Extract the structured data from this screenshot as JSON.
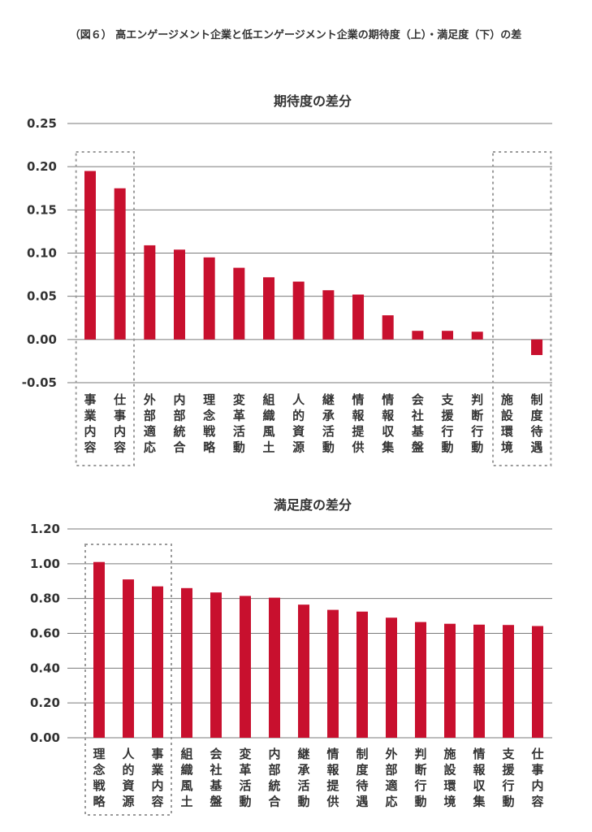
{
  "figure_title": "（図６） 高エンゲージメント企業と低エンゲージメント企業の期待度（上）・満足度（下）の差",
  "colors": {
    "bar": "#c8102e",
    "grid": "#7a7a7a",
    "highlight_border": "#9a9a9a",
    "text": "#333333"
  },
  "chart_data": [
    {
      "type": "bar",
      "title": "期待度の差分",
      "xlabel": "",
      "ylabel": "",
      "ylim": [
        -0.05,
        0.25
      ],
      "y_ticks": [
        "0.25",
        "0.20",
        "0.15",
        "0.10",
        "0.05",
        "0.00",
        "-0.05"
      ],
      "y_tick_values": [
        0.25,
        0.2,
        0.15,
        0.1,
        0.05,
        0.0,
        -0.05
      ],
      "grid": true,
      "categories": [
        "事業内容",
        "仕事内容",
        "外部適応",
        "内部統合",
        "理念戦略",
        "変革活動",
        "組織風土",
        "人的資源",
        "継承活動",
        "情報提供",
        "情報収集",
        "会社基盤",
        "支援行動",
        "判断行動",
        "施設環境",
        "制度待遇"
      ],
      "values": [
        0.195,
        0.175,
        0.109,
        0.104,
        0.095,
        0.083,
        0.072,
        0.067,
        0.057,
        0.052,
        0.028,
        0.01,
        0.01,
        0.009,
        0.0,
        -0.018
      ],
      "highlight_groups": [
        [
          0,
          1
        ],
        [
          14,
          15
        ]
      ]
    },
    {
      "type": "bar",
      "title": "満足度の差分",
      "xlabel": "",
      "ylabel": "",
      "ylim": [
        0.0,
        1.2
      ],
      "y_ticks": [
        "1.20",
        "1.00",
        "0.80",
        "0.60",
        "0.40",
        "0.20",
        "0.00"
      ],
      "y_tick_values": [
        1.2,
        1.0,
        0.8,
        0.6,
        0.4,
        0.2,
        0.0
      ],
      "grid": true,
      "categories": [
        "理念戦略",
        "人的資源",
        "事業内容",
        "組織風土",
        "会社基盤",
        "変革活動",
        "内部統合",
        "継承活動",
        "情報提供",
        "制度待遇",
        "外部適応",
        "判断行動",
        "施設環境",
        "情報収集",
        "支援行動",
        "仕事内容"
      ],
      "values": [
        1.01,
        0.91,
        0.87,
        0.86,
        0.835,
        0.815,
        0.805,
        0.765,
        0.735,
        0.725,
        0.69,
        0.665,
        0.655,
        0.65,
        0.648,
        0.642
      ],
      "highlight_groups": [
        [
          0,
          2
        ]
      ]
    }
  ]
}
